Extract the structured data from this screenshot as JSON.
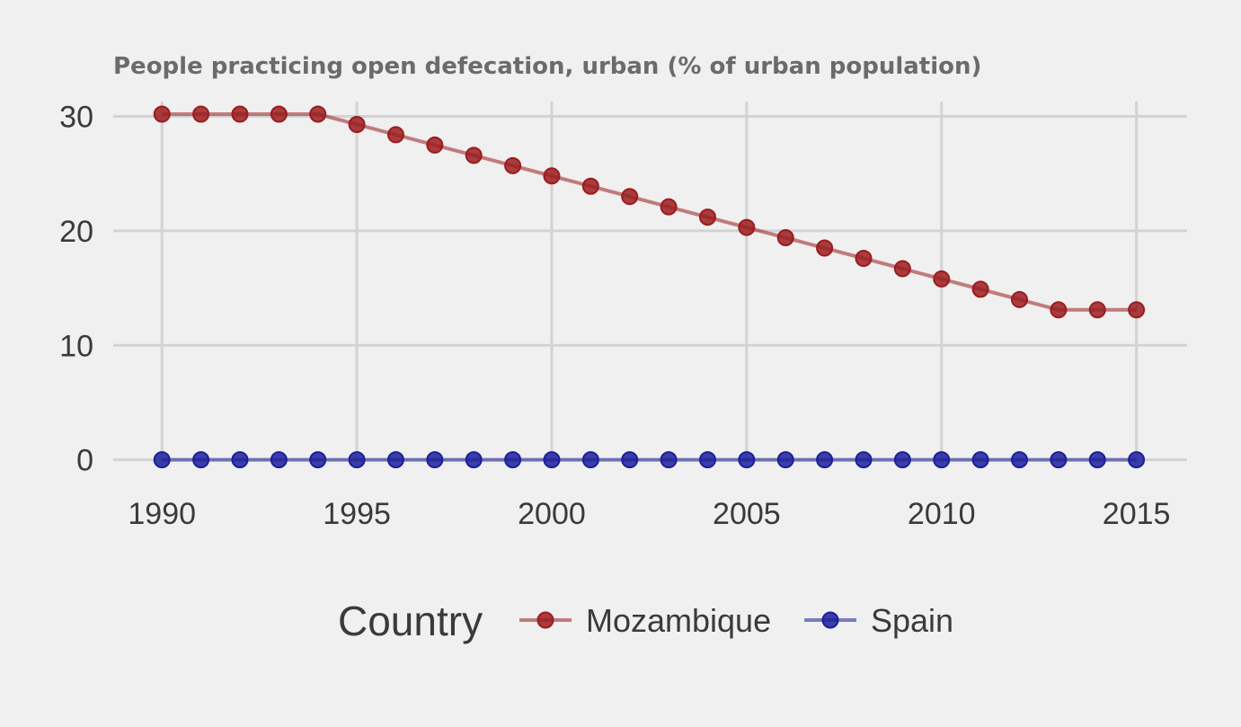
{
  "chart_data": {
    "type": "line",
    "title": "People practicing open defecation, urban (% of urban population)",
    "xlabel": "",
    "ylabel": "",
    "x": [
      1990,
      1991,
      1992,
      1993,
      1994,
      1995,
      1996,
      1997,
      1998,
      1999,
      2000,
      2001,
      2002,
      2003,
      2004,
      2005,
      2006,
      2007,
      2008,
      2009,
      2010,
      2011,
      2012,
      2013,
      2014,
      2015
    ],
    "x_ticks": [
      1990,
      1995,
      2000,
      2005,
      2010,
      2015
    ],
    "x_tick_labels": [
      "1990",
      "1995",
      "2000",
      "2005",
      "2010",
      "2015"
    ],
    "y_ticks": [
      0,
      10,
      20,
      30
    ],
    "y_tick_labels": [
      "0",
      "10",
      "20",
      "30"
    ],
    "xlim": [
      1988.75,
      2016.3
    ],
    "ylim": [
      -0.5,
      31.3
    ],
    "grid": true,
    "legend": {
      "title": "Country",
      "placement": "bottom"
    },
    "series": [
      {
        "name": "Mozambique",
        "color": "#9b1c1f",
        "values": [
          30.2,
          30.2,
          30.2,
          30.2,
          30.2,
          29.3,
          28.4,
          27.5,
          26.6,
          25.7,
          24.8,
          23.9,
          23.0,
          22.1,
          21.2,
          20.3,
          19.4,
          18.5,
          17.6,
          16.7,
          15.8,
          14.9,
          14.0,
          13.1,
          13.1,
          13.1
        ]
      },
      {
        "name": "Spain",
        "color": "#1c1f9b",
        "values": [
          0,
          0,
          0,
          0,
          0,
          0,
          0,
          0,
          0,
          0,
          0,
          0,
          0,
          0,
          0,
          0,
          0,
          0,
          0,
          0,
          0,
          0,
          0,
          0,
          0,
          0
        ]
      }
    ]
  }
}
